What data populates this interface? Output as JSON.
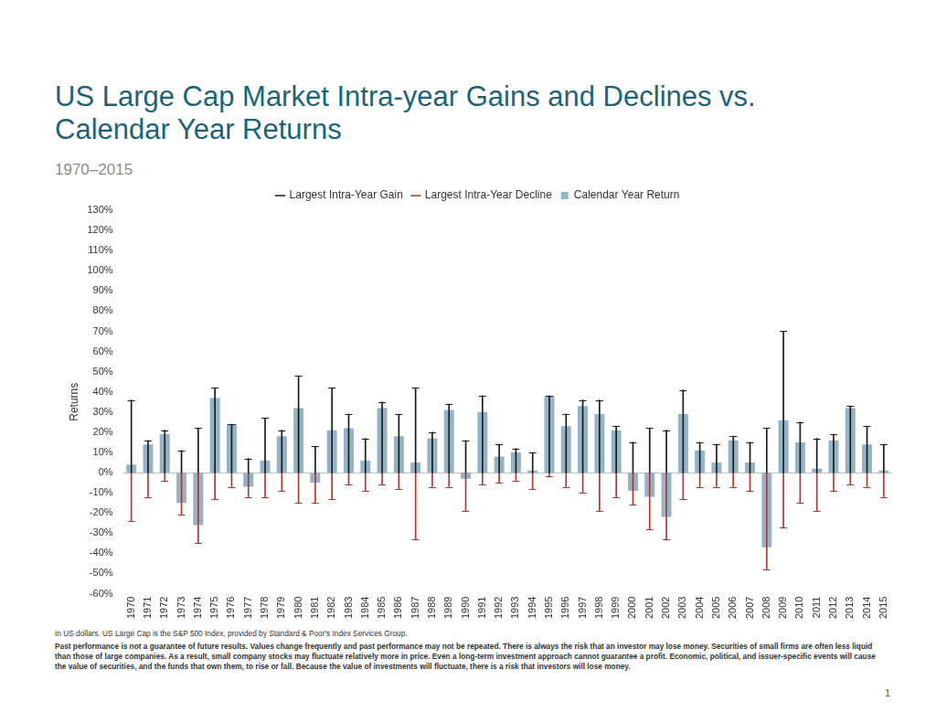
{
  "chart_data": {
    "type": "bar",
    "title": "US Large Cap Market Intra-year Gains and Declines vs. Calendar Year Returns",
    "subtitle": "1970–2015",
    "y_label": "Returns",
    "notes": [
      "In US dollars. US Large Cap is the S&P 500 Index, provided by Standard & Poor's Index Services Group.",
      "Past performance is not a guarantee of future results. Values change frequently and past performance may not be repeated. There is always the risk that an investor may lose money. Securities of small firms are often less liquid than those of large companies. As a result, small company stocks may fluctuate relatively more in price. Even a long-term investment approach cannot guarantee a profit. Economic, political, and issuer-specific events will cause the value of securities, and the funds that own them, to rise or fall. Because the value of investments will fluctuate, there is a risk that investors will lose money."
    ],
    "page_number": "1",
    "categories": [
      "1970",
      "1971",
      "1972",
      "1973",
      "1974",
      "1975",
      "1976",
      "1977",
      "1978",
      "1979",
      "1980",
      "1981",
      "1982",
      "1983",
      "1984",
      "1985",
      "1986",
      "1987",
      "1988",
      "1989",
      "1990",
      "1991",
      "1992",
      "1993",
      "1994",
      "1995",
      "1996",
      "1997",
      "1998",
      "1999",
      "2000",
      "2001",
      "2002",
      "2003",
      "2004",
      "2005",
      "2006",
      "2007",
      "2008",
      "2009",
      "2010",
      "2011",
      "2012",
      "2013",
      "2014",
      "2015"
    ],
    "series": [
      {
        "name": "Calendar Year Return",
        "type": "bar",
        "color": "#93b3c6",
        "values": [
          4,
          14,
          19,
          -15,
          -26,
          37,
          24,
          -7,
          6,
          18,
          32,
          -5,
          21,
          22,
          6,
          32,
          18,
          5,
          17,
          31,
          -3,
          30,
          8,
          10,
          1,
          38,
          23,
          33,
          29,
          21,
          -9,
          -12,
          -22,
          29,
          11,
          5,
          16,
          5,
          -37,
          26,
          15,
          2,
          16,
          32,
          14,
          1
        ]
      },
      {
        "name": "Largest Intra-Year Gain",
        "type": "error_bar",
        "color": "#1a1a1a",
        "values": [
          36,
          16,
          21,
          11,
          22,
          42,
          24,
          7,
          27,
          21,
          48,
          13,
          42,
          29,
          17,
          35,
          29,
          42,
          20,
          34,
          16,
          38,
          14,
          12,
          10,
          38,
          29,
          36,
          36,
          23,
          15,
          22,
          21,
          41,
          15,
          14,
          18,
          15,
          22,
          70,
          25,
          17,
          19,
          33,
          23,
          14
        ]
      },
      {
        "name": "Largest Intra-Year Decline",
        "type": "error_bar",
        "color": "#b5352f",
        "values": [
          -24,
          -12,
          -4,
          -21,
          -35,
          -13,
          -7,
          -12,
          -12,
          -9,
          -15,
          -15,
          -13,
          -6,
          -9,
          -6,
          -8,
          -33,
          -7,
          -7,
          -19,
          -6,
          -5,
          -4,
          -8,
          -2,
          -7,
          -10,
          -19,
          -12,
          -16,
          -28,
          -33,
          -13,
          -7,
          -7,
          -7,
          -9,
          -48,
          -27,
          -15,
          -19,
          -9,
          -6,
          -7,
          -12
        ]
      }
    ],
    "ylim": [
      -60,
      130
    ],
    "yticks": [
      {
        "value": -60,
        "label": "-60%"
      },
      {
        "value": -50,
        "label": "-50%"
      },
      {
        "value": -40,
        "label": "-40%"
      },
      {
        "value": -30,
        "label": "-30%"
      },
      {
        "value": -20,
        "label": "-20%"
      },
      {
        "value": -10,
        "label": "-10%"
      },
      {
        "value": 0,
        "label": "0%"
      },
      {
        "value": 10,
        "label": "10%"
      },
      {
        "value": 20,
        "label": "20%"
      },
      {
        "value": 30,
        "label": "30%"
      },
      {
        "value": 40,
        "label": "40%"
      },
      {
        "value": 50,
        "label": "50%"
      },
      {
        "value": 60,
        "label": "60%"
      },
      {
        "value": 70,
        "label": "70%"
      },
      {
        "value": 80,
        "label": "80%"
      },
      {
        "value": 90,
        "label": "90%"
      },
      {
        "value": 100,
        "label": "100%"
      },
      {
        "value": 110,
        "label": "110%"
      },
      {
        "value": 120,
        "label": "120%"
      },
      {
        "value": 130,
        "label": "130%"
      }
    ],
    "grid": false,
    "legend": "top"
  }
}
